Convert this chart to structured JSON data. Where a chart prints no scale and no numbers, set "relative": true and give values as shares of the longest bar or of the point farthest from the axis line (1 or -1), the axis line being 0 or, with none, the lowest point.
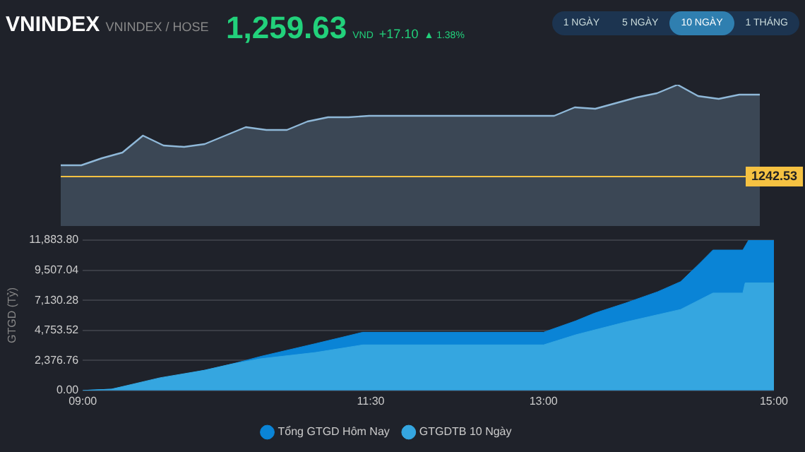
{
  "chart_data": [
    {
      "type": "area",
      "title": "VNINDEX",
      "subtitle": "VNINDEX / HOSE",
      "annotations": [
        "1,259.63",
        "VND",
        "+17.10",
        "▲ 1.38%",
        "1 NGÀY",
        "5 NGÀY",
        "10 NGÀY",
        "1 THÁNG",
        "1242.53"
      ],
      "categories": [
        null,
        null,
        null,
        null,
        null,
        null,
        null,
        null,
        null,
        null,
        null,
        null,
        null,
        null,
        null,
        null,
        null,
        null,
        null,
        null,
        null,
        null,
        null,
        null,
        null,
        null,
        null,
        null,
        null,
        null,
        null,
        null,
        null,
        null,
        null
      ],
      "series": [
        {
          "color": "#8fb8d8",
          "values": [
            0.43,
            0.43,
            0.48,
            0.52,
            0.64,
            0.57,
            0.56,
            0.58,
            0.64,
            0.7,
            0.68,
            0.68,
            0.74,
            0.77,
            0.77,
            0.78,
            0.78,
            0.78,
            0.78,
            0.78,
            0.78,
            0.78,
            0.78,
            0.78,
            0.78,
            0.84,
            0.83,
            0.87,
            0.91,
            0.94,
            1,
            0.92,
            0.9,
            0.93,
            0.93
          ]
        }
      ],
      "relative": true,
      "tick_labels": false,
      "grid": false,
      "legend": false,
      "ref_lines": [
        {
          "axis": "y",
          "value": 0.35,
          "color": "#f5c242"
        }
      ]
    },
    {
      "type": "area",
      "ylabel": "GTGD (Tỷ)",
      "series": [
        {
          "name": "Tổng GTGD Hôm Nay",
          "color": "#0a84d6",
          "x": [
            9,
            9.25,
            9.67,
            10.06,
            10.3,
            10.55,
            11.02,
            11.25,
            11.43,
            13,
            13.28,
            13.44,
            13.71,
            13.99,
            14.19,
            14.35,
            14.47,
            14.73,
            14.78,
            15
          ],
          "values": [
            0,
            100,
            900,
            1600,
            2100,
            2700,
            3700,
            4200,
            4600,
            4600,
            5500,
            6100,
            6900,
            7800,
            8600,
            10000,
            11100,
            11100,
            11880,
            11880
          ]
        },
        {
          "name": "GTGDTB 10 Ngày",
          "color": "#35a6e0",
          "x": [
            9,
            9.25,
            9.67,
            10.06,
            10.3,
            10.54,
            11.02,
            11.43,
            13,
            13.28,
            13.71,
            14.19,
            14.47,
            14.73,
            14.75,
            15
          ],
          "values": [
            0,
            100,
            1000,
            1600,
            2100,
            2500,
            3000,
            3600,
            3600,
            4400,
            5400,
            6400,
            7700,
            7700,
            8500,
            8500
          ]
        }
      ],
      "xlim": [
        9,
        15
      ],
      "xticks": [
        {
          "value": 9,
          "label": "09:00"
        },
        {
          "value": 11.5,
          "label": "11:30"
        },
        {
          "value": 13,
          "label": "13:00"
        },
        {
          "value": 15,
          "label": "15:00"
        }
      ],
      "ylim": [
        0,
        11883.8
      ],
      "yticks": [
        {
          "value": 0,
          "label": "0.00"
        },
        {
          "value": 2376.76,
          "label": "2,376.76"
        },
        {
          "value": 4753.52,
          "label": "4,753.52"
        },
        {
          "value": 7130.28,
          "label": "7,130.28"
        },
        {
          "value": 9507.04,
          "label": "9,507.04"
        },
        {
          "value": 11883.8,
          "label": "11,883.80"
        }
      ],
      "grid": "y",
      "legend": "bottom"
    }
  ]
}
